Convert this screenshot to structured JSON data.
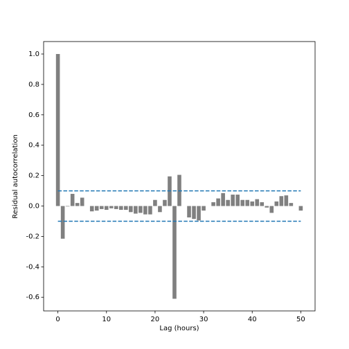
{
  "chart_data": {
    "type": "bar",
    "xlabel": "Lag (hours)",
    "ylabel": "Residual autocorrelation",
    "x": [
      0,
      1,
      2,
      3,
      4,
      5,
      6,
      7,
      8,
      9,
      10,
      11,
      12,
      13,
      14,
      15,
      16,
      17,
      18,
      19,
      20,
      21,
      22,
      23,
      24,
      25,
      26,
      27,
      28,
      29,
      30,
      31,
      32,
      33,
      34,
      35,
      36,
      37,
      38,
      39,
      40,
      41,
      42,
      43,
      44,
      45,
      46,
      47,
      48,
      49,
      50
    ],
    "values": [
      1.0,
      -0.215,
      -0.003,
      0.08,
      0.02,
      0.055,
      0.0,
      -0.035,
      -0.03,
      -0.02,
      -0.025,
      -0.015,
      -0.02,
      -0.025,
      -0.025,
      -0.04,
      -0.05,
      -0.045,
      -0.055,
      -0.055,
      0.04,
      -0.04,
      0.04,
      0.195,
      -0.61,
      0.205,
      0.0,
      -0.075,
      -0.085,
      -0.095,
      -0.03,
      0.0,
      0.025,
      0.05,
      0.085,
      0.04,
      0.075,
      0.075,
      0.04,
      0.04,
      0.03,
      0.045,
      0.025,
      -0.01,
      -0.045,
      0.03,
      0.065,
      0.07,
      0.02,
      0.0,
      -0.03
    ],
    "color": "#808080",
    "bar_width": 0.8,
    "hlines": [
      0.1,
      -0.1
    ],
    "hline_color": "#1f77b4",
    "hline_style": "dashed",
    "xlim": [
      -2.94,
      52.94
    ],
    "xticks": [
      0,
      10,
      20,
      30,
      40,
      50
    ],
    "ylim": [
      -0.69,
      1.082
    ],
    "yticks": [
      -0.6,
      -0.4,
      -0.2,
      {
        "value": 0,
        "label": "0.0"
      },
      0.2,
      0.4,
      0.6,
      0.8,
      {
        "value": 1,
        "label": "1.0"
      }
    ]
  }
}
